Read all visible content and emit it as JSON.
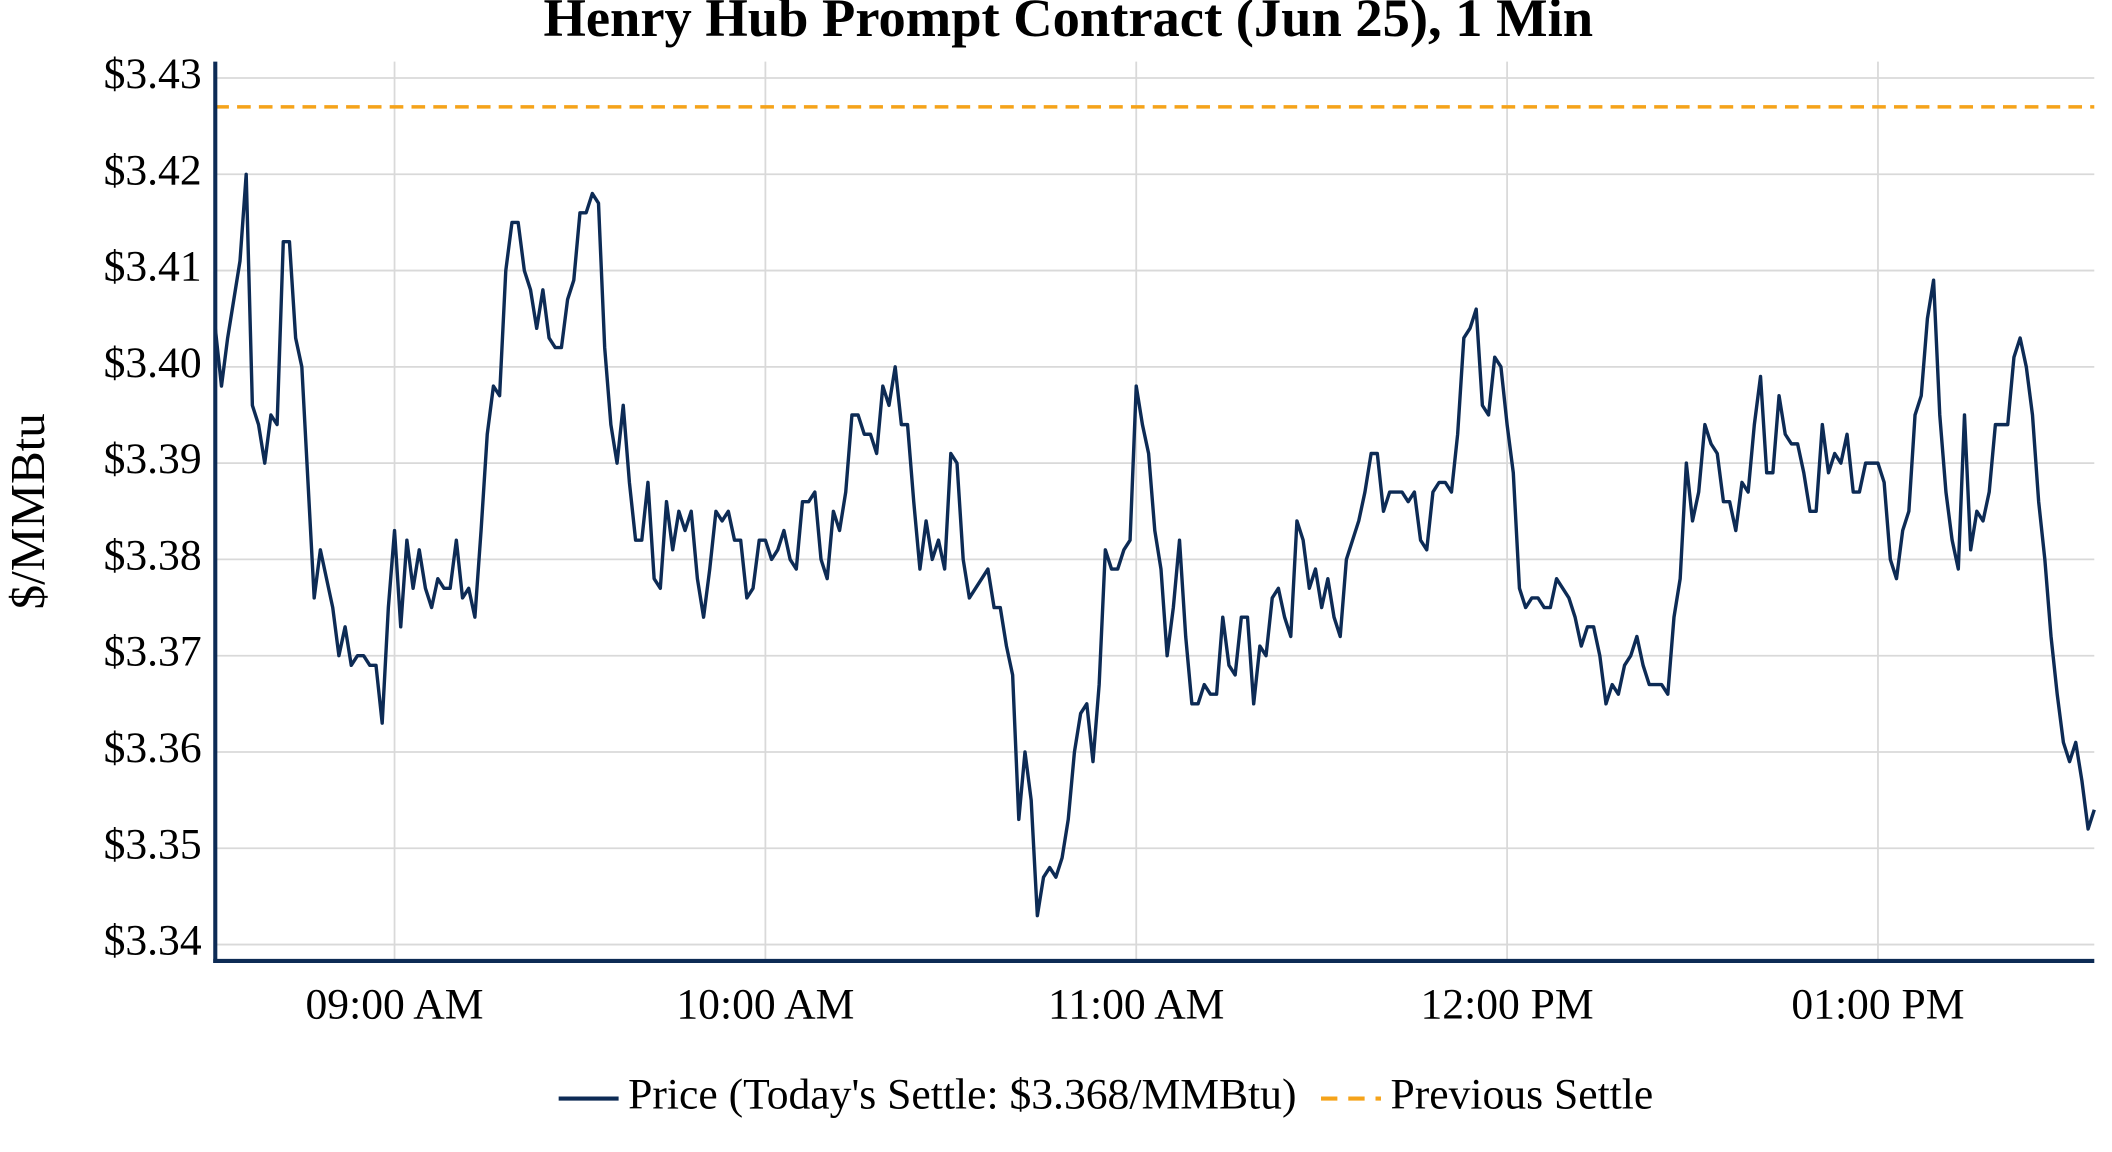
{
  "chart_data": {
    "type": "line",
    "title": "Henry Hub Prompt Contract (Jun 25), 1 Min",
    "y_label": "$/MMBtu",
    "x": [
      "08:31 AM",
      "08:32 AM",
      "08:33 AM",
      "08:34 AM",
      "08:35 AM",
      "08:36 AM",
      "08:37 AM",
      "08:38 AM",
      "08:39 AM",
      "08:40 AM",
      "08:41 AM",
      "08:42 AM",
      "08:43 AM",
      "08:44 AM",
      "08:45 AM",
      "08:46 AM",
      "08:47 AM",
      "08:48 AM",
      "08:49 AM",
      "08:50 AM",
      "08:51 AM",
      "08:52 AM",
      "08:53 AM",
      "08:54 AM",
      "08:55 AM",
      "08:56 AM",
      "08:57 AM",
      "08:58 AM",
      "08:59 AM",
      "09:00 AM",
      "09:01 AM",
      "09:02 AM",
      "09:03 AM",
      "09:04 AM",
      "09:05 AM",
      "09:06 AM",
      "09:07 AM",
      "09:08 AM",
      "09:09 AM",
      "09:10 AM",
      "09:11 AM",
      "09:12 AM",
      "09:13 AM",
      "09:14 AM",
      "09:15 AM",
      "09:16 AM",
      "09:17 AM",
      "09:18 AM",
      "09:19 AM",
      "09:20 AM",
      "09:21 AM",
      "09:22 AM",
      "09:23 AM",
      "09:24 AM",
      "09:25 AM",
      "09:26 AM",
      "09:27 AM",
      "09:28 AM",
      "09:29 AM",
      "09:30 AM",
      "09:31 AM",
      "09:32 AM",
      "09:33 AM",
      "09:34 AM",
      "09:35 AM",
      "09:36 AM",
      "09:37 AM",
      "09:38 AM",
      "09:39 AM",
      "09:40 AM",
      "09:41 AM",
      "09:42 AM",
      "09:43 AM",
      "09:44 AM",
      "09:45 AM",
      "09:46 AM",
      "09:47 AM",
      "09:48 AM",
      "09:49 AM",
      "09:50 AM",
      "09:51 AM",
      "09:52 AM",
      "09:53 AM",
      "09:54 AM",
      "09:55 AM",
      "09:56 AM",
      "09:57 AM",
      "09:58 AM",
      "09:59 AM",
      "10:00 AM",
      "10:01 AM",
      "10:02 AM",
      "10:03 AM",
      "10:04 AM",
      "10:05 AM",
      "10:06 AM",
      "10:07 AM",
      "10:08 AM",
      "10:09 AM",
      "10:10 AM",
      "10:11 AM",
      "10:12 AM",
      "10:13 AM",
      "10:14 AM",
      "10:15 AM",
      "10:16 AM",
      "10:17 AM",
      "10:18 AM",
      "10:19 AM",
      "10:20 AM",
      "10:21 AM",
      "10:22 AM",
      "10:23 AM",
      "10:24 AM",
      "10:25 AM",
      "10:26 AM",
      "10:27 AM",
      "10:28 AM",
      "10:29 AM",
      "10:30 AM",
      "10:31 AM",
      "10:32 AM",
      "10:33 AM",
      "10:34 AM",
      "10:35 AM",
      "10:36 AM",
      "10:37 AM",
      "10:38 AM",
      "10:39 AM",
      "10:40 AM",
      "10:41 AM",
      "10:42 AM",
      "10:43 AM",
      "10:44 AM",
      "10:45 AM",
      "10:46 AM",
      "10:47 AM",
      "10:48 AM",
      "10:49 AM",
      "10:50 AM",
      "10:51 AM",
      "10:52 AM",
      "10:53 AM",
      "10:54 AM",
      "10:55 AM",
      "10:56 AM",
      "10:57 AM",
      "10:58 AM",
      "10:59 AM",
      "11:00 AM",
      "11:01 AM",
      "11:02 AM",
      "11:03 AM",
      "11:04 AM",
      "11:05 AM",
      "11:06 AM",
      "11:07 AM",
      "11:08 AM",
      "11:09 AM",
      "11:10 AM",
      "11:11 AM",
      "11:12 AM",
      "11:13 AM",
      "11:14 AM",
      "11:15 AM",
      "11:16 AM",
      "11:17 AM",
      "11:18 AM",
      "11:19 AM",
      "11:20 AM",
      "11:21 AM",
      "11:22 AM",
      "11:23 AM",
      "11:24 AM",
      "11:25 AM",
      "11:26 AM",
      "11:27 AM",
      "11:28 AM",
      "11:29 AM",
      "11:30 AM",
      "11:31 AM",
      "11:32 AM",
      "11:33 AM",
      "11:34 AM",
      "11:35 AM",
      "11:36 AM",
      "11:37 AM",
      "11:38 AM",
      "11:39 AM",
      "11:40 AM",
      "11:41 AM",
      "11:42 AM",
      "11:43 AM",
      "11:44 AM",
      "11:45 AM",
      "11:46 AM",
      "11:47 AM",
      "11:48 AM",
      "11:49 AM",
      "11:50 AM",
      "11:51 AM",
      "11:52 AM",
      "11:53 AM",
      "11:54 AM",
      "11:55 AM",
      "11:56 AM",
      "11:57 AM",
      "11:58 AM",
      "11:59 AM",
      "12:00 PM",
      "12:01 PM",
      "12:02 PM",
      "12:03 PM",
      "12:04 PM",
      "12:05 PM",
      "12:06 PM",
      "12:07 PM",
      "12:08 PM",
      "12:09 PM",
      "12:10 PM",
      "12:11 PM",
      "12:12 PM",
      "12:13 PM",
      "12:14 PM",
      "12:15 PM",
      "12:16 PM",
      "12:17 PM",
      "12:18 PM",
      "12:19 PM",
      "12:20 PM",
      "12:21 PM",
      "12:22 PM",
      "12:23 PM",
      "12:24 PM",
      "12:25 PM",
      "12:26 PM",
      "12:27 PM",
      "12:28 PM",
      "12:29 PM",
      "12:30 PM",
      "12:31 PM",
      "12:32 PM",
      "12:33 PM",
      "12:34 PM",
      "12:35 PM",
      "12:36 PM",
      "12:37 PM",
      "12:38 PM",
      "12:39 PM",
      "12:40 PM",
      "12:41 PM",
      "12:42 PM",
      "12:43 PM",
      "12:44 PM",
      "12:45 PM",
      "12:46 PM",
      "12:47 PM",
      "12:48 PM",
      "12:49 PM",
      "12:50 PM",
      "12:51 PM",
      "12:52 PM",
      "12:53 PM",
      "12:54 PM",
      "12:55 PM",
      "12:56 PM",
      "12:57 PM",
      "12:58 PM",
      "12:59 PM",
      "01:00 PM",
      "01:01 PM",
      "01:02 PM",
      "01:03 PM",
      "01:04 PM",
      "01:05 PM",
      "01:06 PM",
      "01:07 PM",
      "01:08 PM",
      "01:09 PM",
      "01:10 PM",
      "01:11 PM",
      "01:12 PM",
      "01:13 PM",
      "01:14 PM",
      "01:15 PM",
      "01:16 PM",
      "01:17 PM",
      "01:18 PM",
      "01:19 PM",
      "01:20 PM",
      "01:21 PM",
      "01:22 PM",
      "01:23 PM",
      "01:24 PM",
      "01:25 PM",
      "01:26 PM",
      "01:27 PM",
      "01:28 PM",
      "01:29 PM",
      "01:30 PM",
      "01:31 PM",
      "01:32 PM",
      "01:33 PM",
      "01:34 PM",
      "01:35 PM"
    ],
    "series": [
      {
        "name": "Price (Today's Settle: $3.368/MMBtu)",
        "color": "#0d2b55",
        "values": [
          3.404,
          3.398,
          3.403,
          3.407,
          3.411,
          3.42,
          3.396,
          3.394,
          3.39,
          3.395,
          3.394,
          3.413,
          3.413,
          3.403,
          3.4,
          3.388,
          3.376,
          3.381,
          3.378,
          3.375,
          3.37,
          3.373,
          3.369,
          3.37,
          3.37,
          3.369,
          3.369,
          3.363,
          3.375,
          3.383,
          3.373,
          3.382,
          3.377,
          3.381,
          3.377,
          3.375,
          3.378,
          3.377,
          3.377,
          3.382,
          3.376,
          3.377,
          3.374,
          3.383,
          3.393,
          3.398,
          3.397,
          3.41,
          3.415,
          3.415,
          3.41,
          3.408,
          3.404,
          3.408,
          3.403,
          3.402,
          3.402,
          3.407,
          3.409,
          3.416,
          3.416,
          3.418,
          3.417,
          3.402,
          3.394,
          3.39,
          3.396,
          3.388,
          3.382,
          3.382,
          3.388,
          3.378,
          3.377,
          3.386,
          3.381,
          3.385,
          3.383,
          3.385,
          3.378,
          3.374,
          3.379,
          3.385,
          3.384,
          3.385,
          3.382,
          3.382,
          3.376,
          3.377,
          3.382,
          3.382,
          3.38,
          3.381,
          3.383,
          3.38,
          3.379,
          3.386,
          3.386,
          3.387,
          3.38,
          3.378,
          3.385,
          3.383,
          3.387,
          3.395,
          3.395,
          3.393,
          3.393,
          3.391,
          3.398,
          3.396,
          3.4,
          3.394,
          3.394,
          3.386,
          3.379,
          3.384,
          3.38,
          3.382,
          3.379,
          3.391,
          3.39,
          3.38,
          3.376,
          3.377,
          3.378,
          3.379,
          3.375,
          3.375,
          3.371,
          3.368,
          3.353,
          3.36,
          3.355,
          3.343,
          3.347,
          3.348,
          3.347,
          3.349,
          3.353,
          3.36,
          3.364,
          3.365,
          3.359,
          3.367,
          3.381,
          3.379,
          3.379,
          3.381,
          3.382,
          3.398,
          3.394,
          3.391,
          3.383,
          3.379,
          3.37,
          3.375,
          3.382,
          3.372,
          3.365,
          3.365,
          3.367,
          3.366,
          3.366,
          3.374,
          3.369,
          3.368,
          3.374,
          3.374,
          3.365,
          3.371,
          3.37,
          3.376,
          3.377,
          3.374,
          3.372,
          3.384,
          3.382,
          3.377,
          3.379,
          3.375,
          3.378,
          3.374,
          3.372,
          3.38,
          3.382,
          3.384,
          3.387,
          3.391,
          3.391,
          3.385,
          3.387,
          3.387,
          3.387,
          3.386,
          3.387,
          3.382,
          3.381,
          3.387,
          3.388,
          3.388,
          3.387,
          3.393,
          3.403,
          3.404,
          3.406,
          3.396,
          3.395,
          3.401,
          3.4,
          3.394,
          3.389,
          3.377,
          3.375,
          3.376,
          3.376,
          3.375,
          3.375,
          3.378,
          3.377,
          3.376,
          3.374,
          3.371,
          3.373,
          3.373,
          3.37,
          3.365,
          3.367,
          3.366,
          3.369,
          3.37,
          3.372,
          3.369,
          3.367,
          3.367,
          3.367,
          3.366,
          3.374,
          3.378,
          3.39,
          3.384,
          3.387,
          3.394,
          3.392,
          3.391,
          3.386,
          3.386,
          3.383,
          3.388,
          3.387,
          3.394,
          3.399,
          3.389,
          3.389,
          3.397,
          3.393,
          3.392,
          3.392,
          3.389,
          3.385,
          3.385,
          3.394,
          3.389,
          3.391,
          3.39,
          3.393,
          3.387,
          3.387,
          3.39,
          3.39,
          3.39,
          3.388,
          3.38,
          3.378,
          3.383,
          3.385,
          3.395,
          3.397,
          3.405,
          3.409,
          3.395,
          3.387,
          3.382,
          3.379,
          3.395,
          3.381,
          3.385,
          3.384,
          3.387,
          3.394,
          3.394,
          3.394,
          3.401,
          3.403,
          3.4,
          3.395,
          3.386,
          3.38,
          3.372,
          3.366,
          3.361,
          3.359,
          3.361,
          3.357,
          3.352,
          3.354
        ]
      }
    ],
    "hlines": [
      {
        "name": "Previous Settle",
        "value": 3.427,
        "color": "#f5a31a",
        "dashed": true
      }
    ],
    "xlim": [
      "08:31 AM",
      "01:35 PM"
    ],
    "xticks": [
      "09:00 AM",
      "10:00 AM",
      "11:00 AM",
      "12:00 PM",
      "01:00 PM"
    ],
    "ylim": [
      3.3383,
      3.4317
    ],
    "yticks": [
      {
        "value": 3.34,
        "label": "$3.34"
      },
      {
        "value": 3.35,
        "label": "$3.35"
      },
      {
        "value": 3.36,
        "label": "$3.36"
      },
      {
        "value": 3.37,
        "label": "$3.37"
      },
      {
        "value": 3.38,
        "label": "$3.38"
      },
      {
        "value": 3.39,
        "label": "$3.39"
      },
      {
        "value": 3.4,
        "label": "$3.40"
      },
      {
        "value": 3.41,
        "label": "$3.41"
      },
      {
        "value": 3.42,
        "label": "$3.42"
      },
      {
        "value": 3.43,
        "label": "$3.43"
      }
    ],
    "grid": true,
    "legend": "bottom"
  }
}
